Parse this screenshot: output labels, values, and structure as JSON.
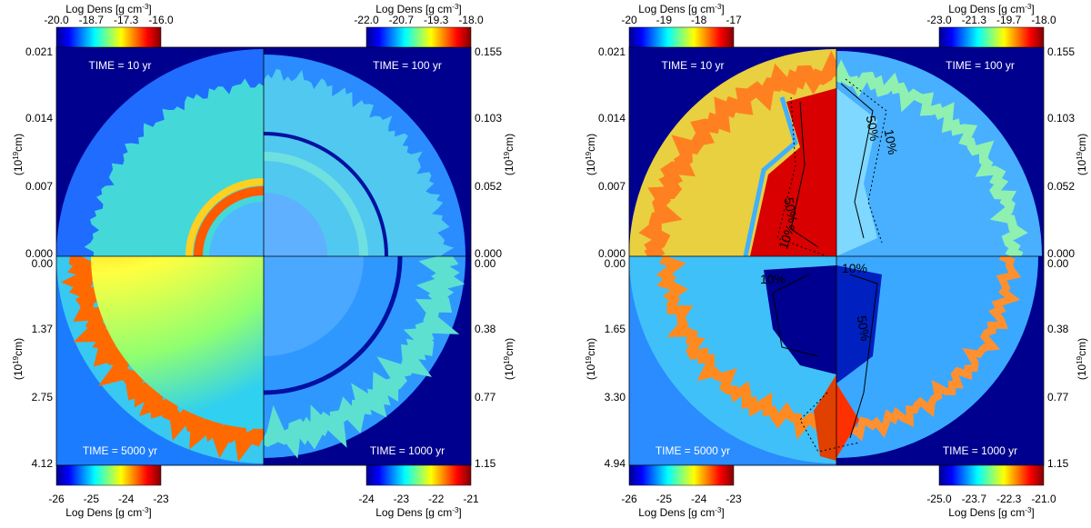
{
  "colorbar_title": {
    "prefix": "Log Dens [g cm",
    "exp": "-3",
    "suffix": "]"
  },
  "axis_label": {
    "prefix": "(10",
    "exp": "19",
    "suffix": "cm)"
  },
  "colormap": [
    "#00008f",
    "#0000ff",
    "#00ffff",
    "#ffff00",
    "#ff0000",
    "#800000"
  ],
  "panels": [
    {
      "colorbars": {
        "top_left": [
          "-20.0",
          "-18.7",
          "-17.3",
          "-16.0"
        ],
        "top_right": [
          "-22.0",
          "-20.7",
          "-19.3",
          "-18.0"
        ],
        "bottom_left": [
          "-26",
          "-25",
          "-24",
          "-23"
        ],
        "bottom_right": [
          "-24",
          "-23",
          "-22",
          "-21"
        ]
      },
      "axes": {
        "left_top": [
          "0.021",
          "0.014",
          "0.007",
          "0.000"
        ],
        "left_bottom": [
          "0.00",
          "1.37",
          "2.75",
          "4.12"
        ],
        "right_top": [
          "0.155",
          "0.103",
          "0.052",
          "0.000"
        ],
        "right_bottom": [
          "0.00",
          "0.38",
          "0.77",
          "1.15"
        ]
      },
      "times": {
        "top_left": "TIME = 10 yr",
        "top_right": "TIME = 100 yr",
        "bottom_left": "TIME = 5000 yr",
        "bottom_right": "TIME = 1000 yr"
      },
      "contour_labels": []
    },
    {
      "colorbars": {
        "top_left": [
          "-20",
          "-19",
          "-18",
          "-17"
        ],
        "top_right": [
          "-23.0",
          "-21.3",
          "-19.7",
          "-18.0"
        ],
        "bottom_left": [
          "-26",
          "-25",
          "-24",
          "-23"
        ],
        "bottom_right": [
          "-25.0",
          "-23.7",
          "-22.3",
          "-21.0"
        ]
      },
      "axes": {
        "left_top": [
          "0.021",
          "0.014",
          "0.007",
          "0.000"
        ],
        "left_bottom": [
          "0.00",
          "1.65",
          "3.30",
          "4.94"
        ],
        "right_top": [
          "0.155",
          "0.103",
          "0.052",
          "0.000"
        ],
        "right_bottom": [
          "0.00",
          "0.38",
          "0.77",
          "1.15"
        ]
      },
      "times": {
        "top_left": "TIME = 10 yr",
        "top_right": "TIME = 100 yr",
        "bottom_left": "TIME = 5000 yr",
        "bottom_right": "TIME = 1000 yr"
      },
      "contour_labels": [
        "10%",
        "50%",
        "50%",
        "10%",
        "10%",
        "10%",
        "50%"
      ]
    }
  ]
}
